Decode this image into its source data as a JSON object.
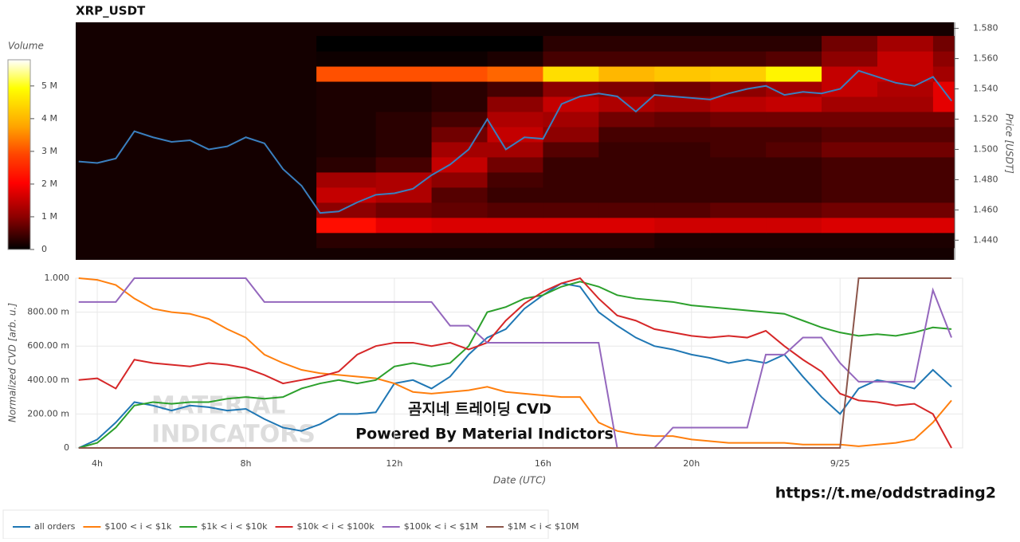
{
  "chart_data": [
    {
      "type": "heatmap",
      "title": "XRP_USDT",
      "y_label": "Price [USDT]",
      "x": [
        3.5,
        4,
        4.5,
        5,
        5.5,
        6,
        6.5,
        7,
        7.5,
        8,
        8.5,
        9,
        9.5,
        10,
        10.5,
        11,
        11.5,
        12,
        12.5,
        13,
        13.5,
        14,
        14.5,
        15,
        15.5,
        16,
        16.5,
        17,
        17.5,
        18,
        18.5,
        19,
        19.5,
        20,
        20.5,
        21,
        21.5,
        22,
        22.5,
        23,
        23.5,
        24,
        24.5,
        25,
        25.5,
        26,
        26.5,
        27
      ],
      "xlim": [
        3.42,
        27.06
      ],
      "ylim": [
        1.427,
        1.584
      ],
      "yticks": [
        {
          "value": 1.44,
          "label": "1.440"
        },
        {
          "value": 1.46,
          "label": "1.460"
        },
        {
          "value": 1.48,
          "label": "1.480"
        },
        {
          "value": 1.5,
          "label": "1.500"
        },
        {
          "value": 1.52,
          "label": "1.520"
        },
        {
          "value": 1.54,
          "label": "1.540"
        },
        {
          "value": 1.56,
          "label": "1.560"
        },
        {
          "value": 1.58,
          "label": "1.580"
        }
      ],
      "series": [
        {
          "color": "#3a7fbf",
          "values": [
            1.492,
            1.491,
            1.494,
            1.512,
            1.508,
            1.505,
            1.506,
            1.5,
            1.502,
            1.508,
            1.504,
            1.487,
            1.476,
            1.458,
            1.459,
            1.465,
            1.47,
            1.471,
            1.474,
            1.483,
            1.49,
            1.5,
            1.52,
            1.5,
            1.508,
            1.507,
            1.53,
            1.535,
            1.537,
            1.535,
            1.525,
            1.536,
            1.535,
            1.534,
            1.533,
            1.537,
            1.54,
            1.542,
            1.536,
            1.538,
            1.537,
            1.54,
            1.552,
            1.548,
            1.544,
            1.542,
            1.548,
            1.532
          ]
        }
      ],
      "heatmap": {
        "x_bins": [
          9.9,
          11.5,
          13,
          14.5,
          16,
          17.5,
          19,
          20.5,
          22,
          23.5,
          25,
          26.5,
          27.06
        ],
        "price_levels": [
          1.44,
          1.45,
          1.46,
          1.47,
          1.48,
          1.49,
          1.5,
          1.51,
          1.52,
          1.53,
          1.54,
          1.55,
          1.56,
          1.57
        ],
        "price_step": 0.01,
        "volumes": [
          [
            0.3,
            0.3,
            0.3,
            0.3,
            0.3,
            0.3,
            0.2,
            0.2,
            0.2,
            0.2,
            0.2,
            0.2
          ],
          [
            2.2,
            1.8,
            1.7,
            1.7,
            1.7,
            1.7,
            1.6,
            1.6,
            1.6,
            1.7,
            1.7,
            1.7
          ],
          [
            1.0,
            0.8,
            0.7,
            0.6,
            0.6,
            0.6,
            0.6,
            0.7,
            0.7,
            0.8,
            0.8,
            0.8
          ],
          [
            1.5,
            1.3,
            0.6,
            0.4,
            0.4,
            0.4,
            0.4,
            0.4,
            0.4,
            0.5,
            0.5,
            0.5
          ],
          [
            1.2,
            1.3,
            1.0,
            0.5,
            0.4,
            0.4,
            0.4,
            0.4,
            0.4,
            0.5,
            0.5,
            0.5
          ],
          [
            0.3,
            0.5,
            1.5,
            0.8,
            0.4,
            0.4,
            0.4,
            0.4,
            0.4,
            0.5,
            0.5,
            0.5
          ],
          [
            0.2,
            0.3,
            1.2,
            1.2,
            0.6,
            0.4,
            0.4,
            0.5,
            0.6,
            0.8,
            0.8,
            0.8
          ],
          [
            0.2,
            0.3,
            0.8,
            1.5,
            1.0,
            0.5,
            0.5,
            0.5,
            0.5,
            0.6,
            0.6,
            0.6
          ],
          [
            0.2,
            0.3,
            0.5,
            1.3,
            1.2,
            0.8,
            0.7,
            0.8,
            0.8,
            0.8,
            0.8,
            0.8
          ],
          [
            0.2,
            0.2,
            0.3,
            1.0,
            1.5,
            1.3,
            1.2,
            1.4,
            1.5,
            1.2,
            1.2,
            1.8
          ],
          [
            0.2,
            0.2,
            0.3,
            0.5,
            1.0,
            0.9,
            0.8,
            1.0,
            1.2,
            1.5,
            1.3,
            1.8
          ],
          [
            3.0,
            3.0,
            3.0,
            3.2,
            4.5,
            4.0,
            4.2,
            4.3,
            4.8,
            1.5,
            1.5,
            1.2
          ],
          [
            0.1,
            0.1,
            0.1,
            0.2,
            0.5,
            0.5,
            0.5,
            0.5,
            0.6,
            1.0,
            1.5,
            1.0
          ],
          [
            0,
            0,
            0,
            0,
            0.3,
            0.3,
            0.3,
            0.3,
            0.3,
            0.8,
            1.2,
            0.8
          ]
        ],
        "colorbar_title": "Volume",
        "clim": [
          0,
          5.8
        ],
        "colorbar_ticks": [
          0,
          {
            "value": 1,
            "label": "1 M"
          },
          {
            "value": 2,
            "label": "2 M"
          },
          {
            "value": 3,
            "label": "3 M"
          },
          {
            "value": 4,
            "label": "4 M"
          },
          {
            "value": 5,
            "label": "5 M"
          }
        ]
      }
    },
    {
      "type": "line",
      "x_label": "Date (UTC)",
      "y_label": "Normalized CVD [arb. u.]",
      "x": [
        3.5,
        4,
        4.5,
        5,
        5.5,
        6,
        6.5,
        7,
        7.5,
        8,
        8.5,
        9,
        9.5,
        10,
        10.5,
        11,
        11.5,
        12,
        12.5,
        13,
        13.5,
        14,
        14.5,
        15,
        15.5,
        16,
        16.5,
        17,
        17.5,
        18,
        18.5,
        19,
        19.5,
        20,
        20.5,
        21,
        21.5,
        22,
        22.5,
        23,
        23.5,
        24,
        24.5,
        25,
        25.5,
        26,
        26.5,
        27
      ],
      "xlim": [
        3.42,
        27.3
      ],
      "ylim": [
        0,
        1
      ],
      "grid": true,
      "xticks": [
        {
          "value": 4,
          "label": "4h"
        },
        {
          "value": 8,
          "label": "8h"
        },
        {
          "value": 12,
          "label": "12h"
        },
        {
          "value": 16,
          "label": "16h"
        },
        {
          "value": 20,
          "label": "20h"
        },
        {
          "value": 24,
          "label": "9/25"
        }
      ],
      "yticks": [
        0,
        {
          "value": 0.2,
          "label": "200.00 m"
        },
        {
          "value": 0.4,
          "label": "400.00 m"
        },
        {
          "value": 0.6,
          "label": "600.00 m"
        },
        {
          "value": 0.8,
          "label": "800.00 m"
        },
        {
          "value": 1,
          "label": "1.000"
        }
      ],
      "series": [
        {
          "name": "all orders",
          "color": "#1f77b4",
          "values": [
            0.0,
            0.05,
            0.15,
            0.27,
            0.25,
            0.22,
            0.25,
            0.24,
            0.22,
            0.23,
            0.17,
            0.12,
            0.1,
            0.14,
            0.2,
            0.2,
            0.21,
            0.38,
            0.4,
            0.35,
            0.42,
            0.55,
            0.65,
            0.7,
            0.82,
            0.9,
            0.97,
            0.95,
            0.8,
            0.72,
            0.65,
            0.6,
            0.58,
            0.55,
            0.53,
            0.5,
            0.52,
            0.5,
            0.55,
            0.42,
            0.3,
            0.2,
            0.35,
            0.4,
            0.38,
            0.35,
            0.46,
            0.36
          ]
        },
        {
          "name": "$100 < i < $1k",
          "color": "#ff7f0e",
          "values": [
            1.0,
            0.99,
            0.96,
            0.88,
            0.82,
            0.8,
            0.79,
            0.76,
            0.7,
            0.65,
            0.55,
            0.5,
            0.46,
            0.44,
            0.43,
            0.42,
            0.41,
            0.38,
            0.33,
            0.32,
            0.33,
            0.34,
            0.36,
            0.33,
            0.32,
            0.31,
            0.3,
            0.3,
            0.15,
            0.1,
            0.08,
            0.07,
            0.07,
            0.05,
            0.04,
            0.03,
            0.03,
            0.03,
            0.03,
            0.02,
            0.02,
            0.02,
            0.01,
            0.02,
            0.03,
            0.05,
            0.15,
            0.28
          ]
        },
        {
          "name": "$1k < i < $10k",
          "color": "#2ca02c",
          "values": [
            0.0,
            0.03,
            0.12,
            0.25,
            0.27,
            0.26,
            0.27,
            0.27,
            0.29,
            0.3,
            0.29,
            0.3,
            0.35,
            0.38,
            0.4,
            0.38,
            0.4,
            0.48,
            0.5,
            0.48,
            0.5,
            0.6,
            0.8,
            0.83,
            0.88,
            0.9,
            0.95,
            0.98,
            0.95,
            0.9,
            0.88,
            0.87,
            0.86,
            0.84,
            0.83,
            0.82,
            0.81,
            0.8,
            0.79,
            0.75,
            0.71,
            0.68,
            0.66,
            0.67,
            0.66,
            0.68,
            0.71,
            0.7
          ]
        },
        {
          "name": "$10k < i < $100k",
          "color": "#d62728",
          "values": [
            0.4,
            0.41,
            0.35,
            0.52,
            0.5,
            0.49,
            0.48,
            0.5,
            0.49,
            0.47,
            0.43,
            0.38,
            0.4,
            0.42,
            0.45,
            0.55,
            0.6,
            0.62,
            0.62,
            0.6,
            0.62,
            0.58,
            0.62,
            0.75,
            0.85,
            0.92,
            0.97,
            1.0,
            0.88,
            0.78,
            0.75,
            0.7,
            0.68,
            0.66,
            0.65,
            0.66,
            0.65,
            0.69,
            0.6,
            0.52,
            0.45,
            0.32,
            0.28,
            0.27,
            0.25,
            0.26,
            0.2,
            0.0
          ]
        },
        {
          "name": "$100k < i < $1M",
          "color": "#9467bd",
          "values": [
            0.86,
            0.86,
            0.86,
            1.0,
            1.0,
            1.0,
            1.0,
            1.0,
            1.0,
            1.0,
            0.86,
            0.86,
            0.86,
            0.86,
            0.86,
            0.86,
            0.86,
            0.86,
            0.86,
            0.86,
            0.72,
            0.72,
            0.62,
            0.62,
            0.62,
            0.62,
            0.62,
            0.62,
            0.62,
            0.0,
            0.0,
            0.0,
            0.12,
            0.12,
            0.12,
            0.12,
            0.12,
            0.55,
            0.55,
            0.65,
            0.65,
            0.5,
            0.39,
            0.39,
            0.39,
            0.39,
            0.93,
            0.65
          ]
        },
        {
          "name": "$1M < i < $10M",
          "color": "#8c564b",
          "values": [
            0,
            0,
            0,
            0,
            0,
            0,
            0,
            0,
            0,
            0,
            0,
            0,
            0,
            0,
            0,
            0,
            0,
            0,
            0,
            0,
            0,
            0,
            0,
            0,
            0,
            0,
            0,
            0,
            0,
            0,
            0,
            0,
            0,
            0,
            0,
            0,
            0,
            0,
            0,
            0,
            0,
            0,
            1,
            1,
            1,
            1,
            1,
            1
          ]
        }
      ]
    }
  ],
  "watermark": {
    "lines": [
      "곰지네 트레이딩 CVD",
      "Powered By Material Indictors"
    ],
    "logo": [
      "MATERIAL",
      "INDICATORS"
    ],
    "url": "https://t.me/oddstrading2"
  }
}
